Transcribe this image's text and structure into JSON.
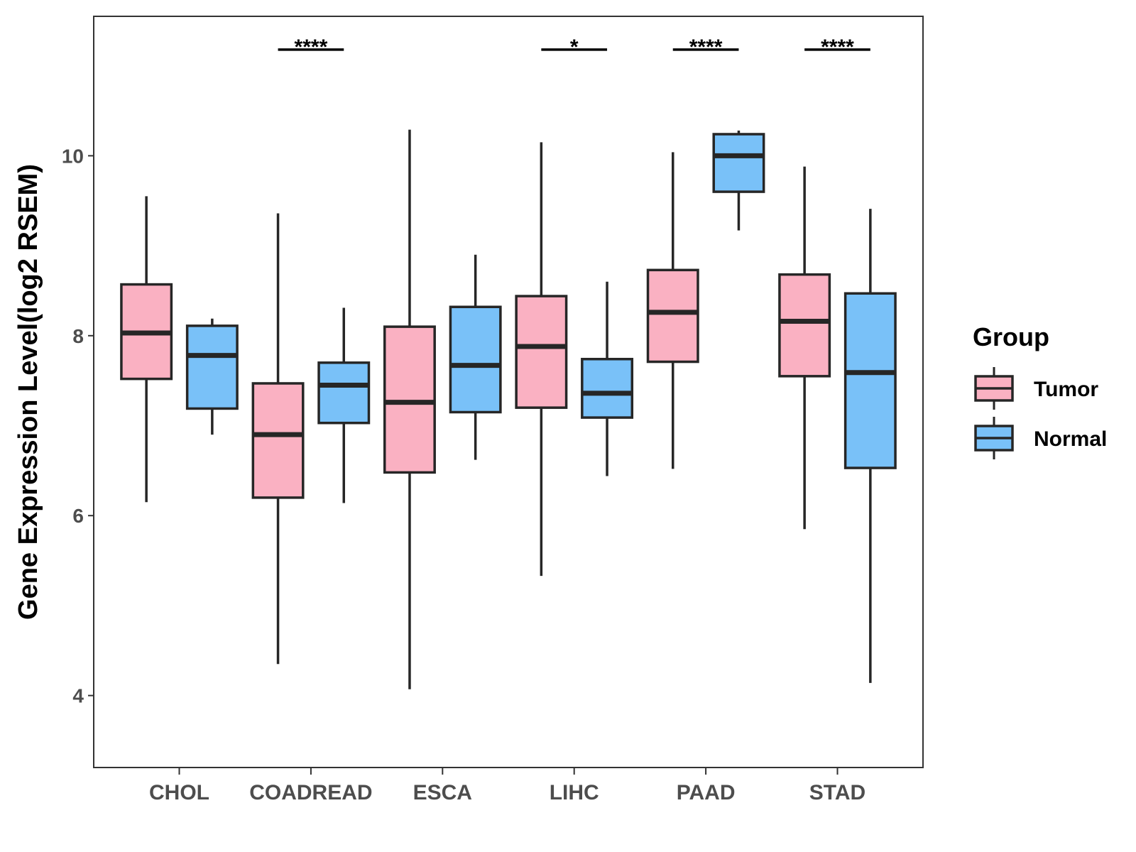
{
  "chart_data": {
    "type": "boxplot",
    "title": "",
    "xlabel": "",
    "ylabel": "Gene Expression Level(log2 RSEM)",
    "ylim": [
      3.2,
      11.55
    ],
    "yticks": [
      4,
      6,
      8,
      10
    ],
    "grid": false,
    "categories": [
      "CHOL",
      "COADREAD",
      "ESCA",
      "LIHC",
      "PAAD",
      "STAD"
    ],
    "legend": {
      "title": "Group",
      "position": "right",
      "entries": [
        {
          "name": "Tumor",
          "color": "#FAB1C2"
        },
        {
          "name": "Normal",
          "color": "#79C1F8"
        }
      ]
    },
    "series": [
      {
        "name": "Tumor",
        "color": "#FAB1C2",
        "boxes": [
          {
            "category": "CHOL",
            "min": 6.15,
            "q1": 7.52,
            "median": 8.03,
            "q3": 8.57,
            "max": 9.55
          },
          {
            "category": "COADREAD",
            "min": 4.35,
            "q1": 6.2,
            "median": 6.9,
            "q3": 7.47,
            "max": 9.36
          },
          {
            "category": "ESCA",
            "min": 4.07,
            "q1": 6.48,
            "median": 7.26,
            "q3": 8.1,
            "max": 10.29
          },
          {
            "category": "LIHC",
            "min": 5.33,
            "q1": 7.2,
            "median": 7.88,
            "q3": 8.44,
            "max": 10.15
          },
          {
            "category": "PAAD",
            "min": 6.52,
            "q1": 7.71,
            "median": 8.26,
            "q3": 8.73,
            "max": 10.04
          },
          {
            "category": "STAD",
            "min": 5.85,
            "q1": 7.55,
            "median": 8.16,
            "q3": 8.68,
            "max": 9.88
          }
        ]
      },
      {
        "name": "Normal",
        "color": "#79C1F8",
        "boxes": [
          {
            "category": "CHOL",
            "min": 6.9,
            "q1": 7.19,
            "median": 7.78,
            "q3": 8.11,
            "max": 8.19
          },
          {
            "category": "COADREAD",
            "min": 6.14,
            "q1": 7.03,
            "median": 7.45,
            "q3": 7.7,
            "max": 8.31
          },
          {
            "category": "ESCA",
            "min": 6.62,
            "q1": 7.15,
            "median": 7.67,
            "q3": 8.32,
            "max": 8.9
          },
          {
            "category": "LIHC",
            "min": 6.44,
            "q1": 7.09,
            "median": 7.36,
            "q3": 7.74,
            "max": 8.6
          },
          {
            "category": "PAAD",
            "min": 9.17,
            "q1": 9.6,
            "median": 10.0,
            "q3": 10.24,
            "max": 10.28
          },
          {
            "category": "STAD",
            "min": 4.14,
            "q1": 6.53,
            "median": 7.59,
            "q3": 8.47,
            "max": 9.41
          }
        ]
      }
    ],
    "significance": [
      {
        "category": "COADREAD",
        "label": "****"
      },
      {
        "category": "LIHC",
        "label": "*"
      },
      {
        "category": "PAAD",
        "label": "****"
      },
      {
        "category": "STAD",
        "label": "****"
      }
    ]
  }
}
